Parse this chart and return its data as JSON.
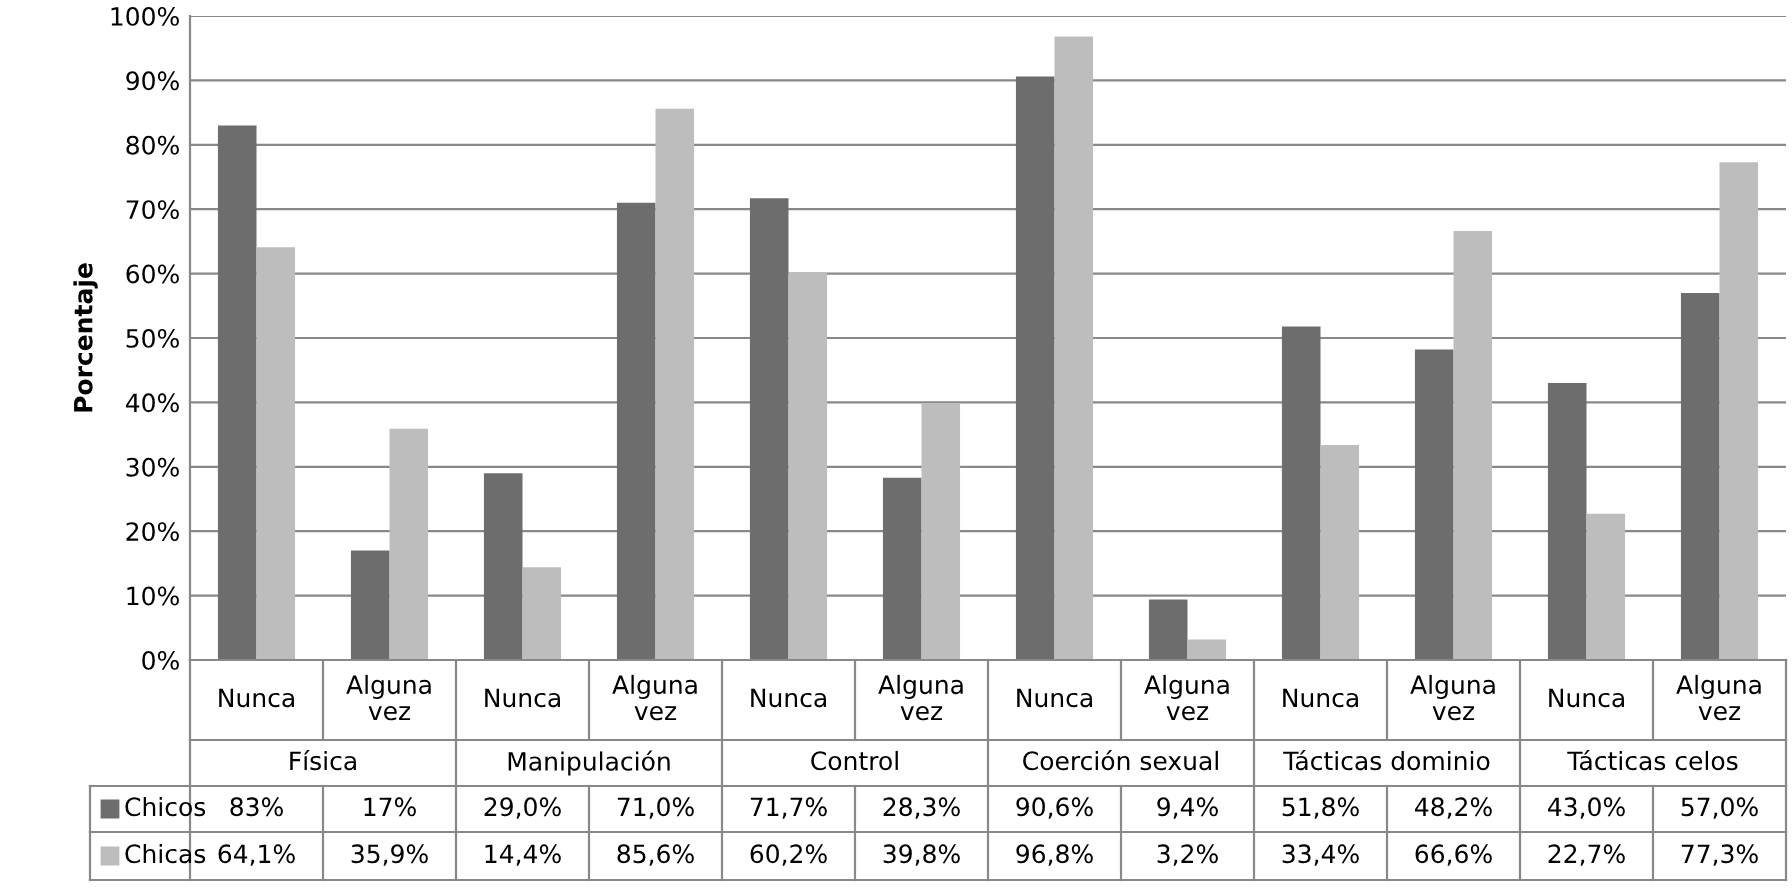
{
  "chart_data": {
    "type": "bar",
    "ylabel": "Porcentaje",
    "categories": [
      "Nunca",
      "Alguna vez",
      "Nunca",
      "Alguna vez",
      "Nunca",
      "Alguna vez",
      "Nunca",
      "Alguna vez",
      "Nunca",
      "Alguna vez",
      "Nunca",
      "Alguna vez"
    ],
    "annotations": [
      "Física",
      "Manipulación",
      "Control",
      "Coerción sexual",
      "Tácticas dominio",
      "Tácticas celos"
    ],
    "series": [
      {
        "name": "Chicos",
        "color": "#6d6d6d",
        "values": [
          83,
          17,
          29.0,
          71.0,
          71.7,
          28.3,
          90.6,
          9.4,
          51.8,
          48.2,
          43.0,
          57.0
        ],
        "value_labels": [
          "83%",
          "17%",
          "29,0%",
          "71,0%",
          "71,7%",
          "28,3%",
          "90,6%",
          "9,4%",
          "51,8%",
          "48,2%",
          "43,0%",
          "57,0%"
        ]
      },
      {
        "name": "Chicas",
        "color": "#bdbdbd",
        "values": [
          64.1,
          35.9,
          14.4,
          85.6,
          60.2,
          39.8,
          96.8,
          3.2,
          33.4,
          66.6,
          22.7,
          77.3
        ],
        "value_labels": [
          "64,1%",
          "35,9%",
          "14,4%",
          "85,6%",
          "60,2%",
          "39,8%",
          "96,8%",
          "3,2%",
          "33,4%",
          "66,6%",
          "22,7%",
          "77,3%"
        ]
      }
    ],
    "ylim": [
      0,
      100
    ],
    "yticks": [
      {
        "value": 0,
        "label": "0%"
      },
      {
        "value": 10,
        "label": "10%"
      },
      {
        "value": 20,
        "label": "20%"
      },
      {
        "value": 30,
        "label": "30%"
      },
      {
        "value": 40,
        "label": "40%"
      },
      {
        "value": 50,
        "label": "50%"
      },
      {
        "value": 60,
        "label": "60%"
      },
      {
        "value": 70,
        "label": "70%"
      },
      {
        "value": 80,
        "label": "80%"
      },
      {
        "value": 90,
        "label": "90%"
      },
      {
        "value": 100,
        "label": "100%"
      }
    ],
    "grid": "y",
    "legend": "bottom"
  }
}
